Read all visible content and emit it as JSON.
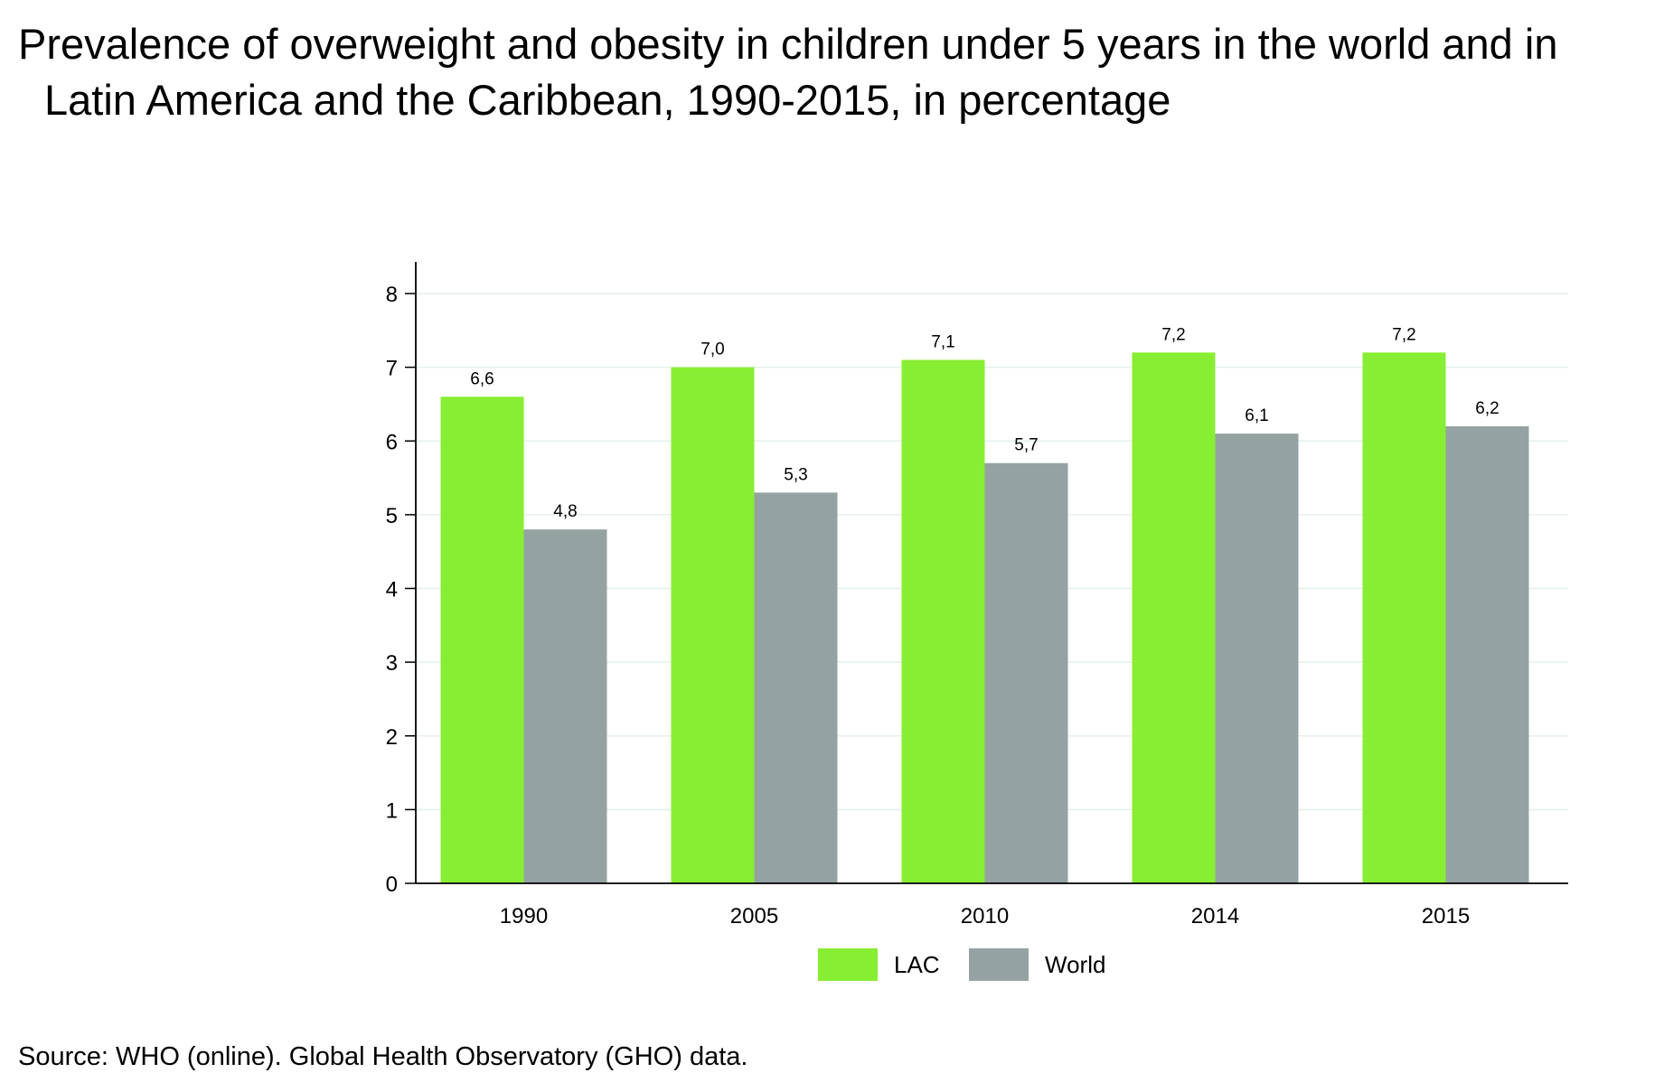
{
  "title": {
    "line1": "Prevalence of overweight and obesity in children under 5 years in the world and in",
    "line2": "Latin America and the Caribbean, 1990-2015, in percentage"
  },
  "source": "Source: WHO (online). Global Health Observatory (GHO) data.",
  "chart_data": {
    "type": "bar",
    "title": "Prevalence of overweight and obesity in children under 5 years in the world and in Latin America and the Caribbean, 1990-2015, in percentage",
    "categories": [
      "1990",
      "2005",
      "2010",
      "2014",
      "2015"
    ],
    "series": [
      {
        "name": "LAC",
        "values": [
          6.6,
          7.0,
          7.1,
          7.2,
          7.2
        ],
        "labels": [
          "6,6",
          "7,0",
          "7,1",
          "7,2",
          "7,2"
        ],
        "color": "#88ee33"
      },
      {
        "name": "World",
        "values": [
          4.8,
          5.3,
          5.7,
          6.1,
          6.2
        ],
        "labels": [
          "4,8",
          "5,3",
          "5,7",
          "6,1",
          "6,2"
        ],
        "color": "#94a3a1"
      }
    ],
    "xlabel": "",
    "ylabel": "",
    "ylim": [
      0,
      8
    ],
    "yticks": [
      "0",
      "1",
      "2",
      "3",
      "4",
      "5",
      "6",
      "7",
      "8"
    ],
    "grid": true,
    "gridColor": "#e6efec",
    "legend": "bottom-center"
  }
}
